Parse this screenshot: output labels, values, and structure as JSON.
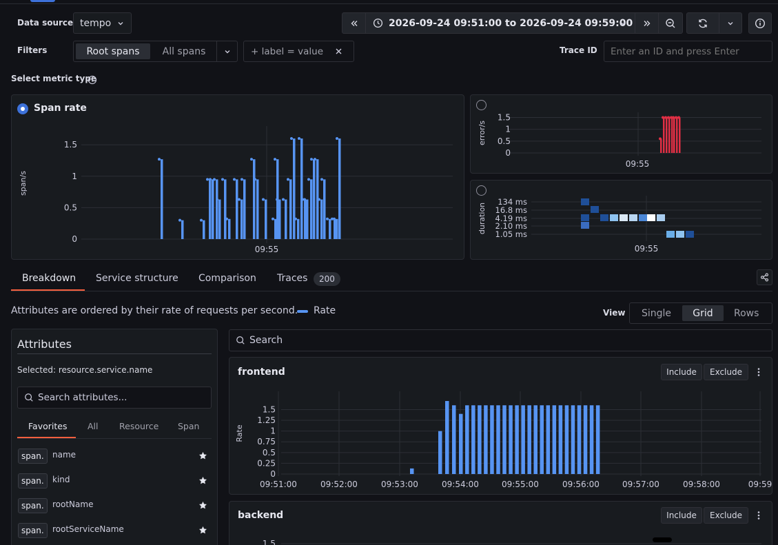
{
  "header": {
    "data_source_label": "Data source",
    "data_source_value": "tempo",
    "time_range": "2026-09-24 09:51:00 to 2026-09-24 09:59:00",
    "filters_label": "Filters",
    "root_spans": "Root spans",
    "all_spans": "All spans",
    "label_filter": "+ label = value",
    "trace_id_label": "Trace ID",
    "trace_id_placeholder": "Enter an ID and press Enter"
  },
  "metric_type": {
    "label": "Select metric type",
    "span_rate_title": "Span rate",
    "error_ylabel": "error/s",
    "duration_ylabel": "duration"
  },
  "tabs": [
    {
      "label": "Breakdown",
      "active": true
    },
    {
      "label": "Service structure"
    },
    {
      "label": "Comparison"
    },
    {
      "label": "Traces",
      "count": "200"
    }
  ],
  "breakdown": {
    "description": "Attributes are ordered by their rate of requests per second.",
    "legend_rate": "Rate",
    "view_label": "View",
    "views": [
      "Single",
      "Grid",
      "Rows"
    ],
    "active_view": "Grid",
    "search_placeholder": "Search"
  },
  "attributes": {
    "title": "Attributes",
    "selected": "Selected: resource.service.name",
    "search_placeholder": "Search attributes...",
    "tabs": [
      "Favorites",
      "All",
      "Resource",
      "Span"
    ],
    "items": [
      {
        "scope": "span.",
        "name": "name"
      },
      {
        "scope": "span.",
        "name": "kind"
      },
      {
        "scope": "span.",
        "name": "rootName"
      },
      {
        "scope": "span.",
        "name": "rootServiceName"
      }
    ]
  },
  "service_panels": [
    {
      "name": "frontend",
      "include": "Include",
      "exclude": "Exclude"
    },
    {
      "name": "backend",
      "include": "Include",
      "exclude": "Exclude"
    }
  ],
  "colors": {
    "accent": "#5794f2",
    "error": "#e02f44",
    "tab_underline": "#f55f3e"
  },
  "chart_data": [
    {
      "type": "bar",
      "title": "Span rate",
      "ylabel": "span/s",
      "yticks": [
        "0",
        "0.5",
        "1",
        "1.5"
      ],
      "ylim": [
        0,
        1.6
      ],
      "xticks": [
        "09:55"
      ],
      "values": [
        1.27,
        0.3,
        0.3,
        0.95,
        0.95,
        0.95,
        0.63,
        0.95,
        0.32,
        0.95,
        0.63,
        0.95,
        1.27,
        0.95,
        0.63,
        0.32,
        1.27,
        0.63,
        0.63,
        0.95,
        1.6,
        0.32,
        1.6,
        0.63,
        0.63,
        0.95,
        1.27,
        1.27,
        0.63,
        0.95,
        0.32,
        0.32,
        0.32,
        1.6
      ]
    },
    {
      "type": "bar",
      "ylabel": "error/s",
      "yticks": [
        "0",
        "0.5",
        "1",
        "1.5"
      ],
      "ylim": [
        0,
        1.6
      ],
      "xticks": [
        "09:55"
      ],
      "values": [
        0.6,
        1.5,
        1.5,
        1.5,
        1.5,
        1.5,
        1.5,
        1.5
      ]
    },
    {
      "type": "heatmap",
      "ylabel": "duration",
      "yticks": [
        "134 ms",
        "16.8 ms",
        "4.19 ms",
        "2.10 ms",
        "1.05 ms"
      ],
      "xticks": [
        "09:55"
      ]
    },
    {
      "type": "bar",
      "title": "frontend",
      "ylabel": "Rate",
      "yticks": [
        "0",
        "0.25",
        "0.5",
        "0.75",
        "1",
        "1.25",
        "1.5"
      ],
      "ylim": [
        0,
        1.7
      ],
      "xticks": [
        "09:51:00",
        "09:52:00",
        "09:53:00",
        "09:54:00",
        "09:55:00",
        "09:56:00",
        "09:57:00",
        "09:58:00",
        "09:59"
      ],
      "values": [
        0.13,
        1.0,
        1.7,
        1.6,
        1.4,
        1.6,
        1.6,
        1.6,
        1.6,
        1.6,
        1.6,
        1.6,
        1.6,
        1.6,
        1.6,
        1.6,
        1.6,
        1.6,
        1.6,
        1.6,
        1.6,
        1.6,
        1.6,
        1.6,
        1.6,
        1.6,
        1.6
      ]
    },
    {
      "type": "bar",
      "title": "backend",
      "yticks": [
        "1.5"
      ]
    }
  ]
}
